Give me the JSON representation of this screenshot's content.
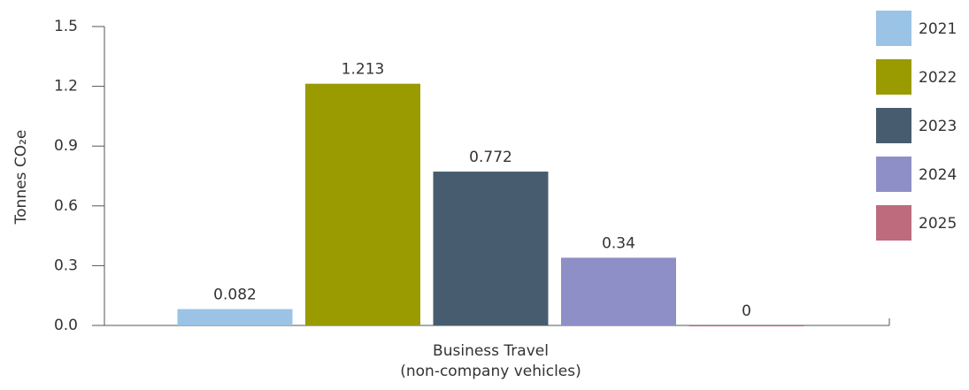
{
  "chart_data": {
    "type": "bar",
    "y_label": "Tonnes CO₂e",
    "categories": [
      "Business Travel\n(non-company vehicles)"
    ],
    "series": [
      {
        "name": "2021",
        "color": "#9ac3e6",
        "values": [
          0.082
        ]
      },
      {
        "name": "2022",
        "color": "#9a9b00",
        "values": [
          1.213
        ]
      },
      {
        "name": "2023",
        "color": "#475c6e",
        "values": [
          0.772
        ]
      },
      {
        "name": "2024",
        "color": "#8f8fc8",
        "values": [
          0.34
        ]
      },
      {
        "name": "2025",
        "color": "#be6b7e",
        "values": [
          0
        ]
      }
    ],
    "ylim": [
      0,
      1.5
    ],
    "yticks": [
      {
        "value": 0,
        "label": "0.0"
      },
      0.3,
      0.6,
      0.9,
      1.2,
      1.5
    ],
    "legend": "right"
  }
}
